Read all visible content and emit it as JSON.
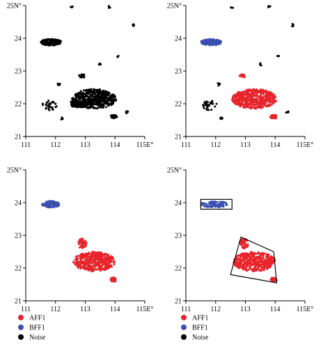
{
  "colors": {
    "AFF1": "#e8242b",
    "BFF1": "#3b4fb0",
    "Noise": "#000000",
    "axis": "#000000",
    "polygon": "#000000"
  },
  "chart_data": [
    {
      "type": "scatter",
      "panel": "top-left",
      "xlim": [
        111,
        115
      ],
      "ylim": [
        21,
        25
      ],
      "x_ticks": [
        "111",
        "112",
        "113",
        "114",
        "115E°"
      ],
      "y_ticks": [
        "21",
        "22",
        "23",
        "24",
        "25N°"
      ],
      "grid": false,
      "series": [
        {
          "name": "Noise",
          "color": "#000000",
          "regions": [
            {
              "cx": 111.85,
              "cy": 23.88,
              "rx": 0.35,
              "ry": 0.1,
              "n": 160
            },
            {
              "cx": 113.3,
              "cy": 22.15,
              "rx": 0.75,
              "ry": 0.3,
              "n": 500
            },
            {
              "cx": 112.8,
              "cy": 22.0,
              "rx": 0.35,
              "ry": 0.12,
              "n": 80
            },
            {
              "cx": 113.95,
              "cy": 21.6,
              "rx": 0.12,
              "ry": 0.06,
              "n": 40
            },
            {
              "cx": 112.9,
              "cy": 22.85,
              "rx": 0.12,
              "ry": 0.05,
              "n": 20
            },
            {
              "cx": 111.8,
              "cy": 21.95,
              "rx": 0.25,
              "ry": 0.15,
              "n": 30
            },
            {
              "cx": 112.1,
              "cy": 22.6,
              "rx": 0.05,
              "ry": 0.05,
              "n": 6
            },
            {
              "cx": 114.4,
              "cy": 21.75,
              "rx": 0.05,
              "ry": 0.04,
              "n": 5
            },
            {
              "cx": 112.2,
              "cy": 21.55,
              "rx": 0.05,
              "ry": 0.04,
              "n": 5
            },
            {
              "cx": 113.5,
              "cy": 23.2,
              "rx": 0.05,
              "ry": 0.04,
              "n": 4
            },
            {
              "cx": 114.6,
              "cy": 24.4,
              "rx": 0.05,
              "ry": 0.04,
              "n": 4
            },
            {
              "cx": 113.8,
              "cy": 24.95,
              "rx": 0.05,
              "ry": 0.04,
              "n": 4
            },
            {
              "cx": 114.1,
              "cy": 23.45,
              "rx": 0.04,
              "ry": 0.03,
              "n": 3
            },
            {
              "cx": 112.55,
              "cy": 24.95,
              "rx": 0.04,
              "ry": 0.03,
              "n": 3
            }
          ]
        }
      ]
    },
    {
      "type": "scatter",
      "panel": "top-right",
      "xlim": [
        111,
        115
      ],
      "ylim": [
        21,
        25
      ],
      "x_ticks": [
        "111",
        "112",
        "113",
        "114",
        "115E°"
      ],
      "y_ticks": [
        "21",
        "22",
        "23",
        "24",
        "25N°"
      ],
      "grid": false,
      "series": [
        {
          "name": "BFF1",
          "color": "#3b4fb0",
          "regions": [
            {
              "cx": 111.85,
              "cy": 23.88,
              "rx": 0.35,
              "ry": 0.1,
              "n": 160
            }
          ]
        },
        {
          "name": "AFF1",
          "color": "#e8242b",
          "regions": [
            {
              "cx": 113.3,
              "cy": 22.15,
              "rx": 0.75,
              "ry": 0.3,
              "n": 500
            },
            {
              "cx": 112.9,
              "cy": 22.85,
              "rx": 0.12,
              "ry": 0.05,
              "n": 20
            },
            {
              "cx": 113.95,
              "cy": 21.6,
              "rx": 0.12,
              "ry": 0.06,
              "n": 40
            }
          ]
        },
        {
          "name": "Noise",
          "color": "#000000",
          "regions": [
            {
              "cx": 111.8,
              "cy": 21.95,
              "rx": 0.25,
              "ry": 0.15,
              "n": 30
            },
            {
              "cx": 112.1,
              "cy": 22.6,
              "rx": 0.05,
              "ry": 0.05,
              "n": 6
            },
            {
              "cx": 114.4,
              "cy": 21.75,
              "rx": 0.05,
              "ry": 0.04,
              "n": 5
            },
            {
              "cx": 112.2,
              "cy": 21.55,
              "rx": 0.05,
              "ry": 0.04,
              "n": 5
            },
            {
              "cx": 113.5,
              "cy": 23.2,
              "rx": 0.05,
              "ry": 0.04,
              "n": 4
            },
            {
              "cx": 114.6,
              "cy": 24.4,
              "rx": 0.05,
              "ry": 0.04,
              "n": 4
            },
            {
              "cx": 113.8,
              "cy": 24.95,
              "rx": 0.05,
              "ry": 0.04,
              "n": 4
            },
            {
              "cx": 114.1,
              "cy": 23.45,
              "rx": 0.04,
              "ry": 0.03,
              "n": 3
            },
            {
              "cx": 112.55,
              "cy": 24.95,
              "rx": 0.04,
              "ry": 0.03,
              "n": 3
            }
          ]
        }
      ]
    },
    {
      "type": "scatter",
      "panel": "bottom-left",
      "xlim": [
        111,
        115
      ],
      "ylim": [
        21,
        25
      ],
      "x_ticks": [
        "111",
        "112",
        "113",
        "114",
        "115E°"
      ],
      "y_ticks": [
        "21",
        "22",
        "23",
        "24",
        "25N°"
      ],
      "grid": false,
      "series": [
        {
          "name": "BFF1",
          "color": "#3b4fb0",
          "regions": [
            {
              "cx": 111.85,
              "cy": 23.95,
              "rx": 0.3,
              "ry": 0.1,
              "n": 110
            }
          ]
        },
        {
          "name": "AFF1",
          "color": "#e8242b",
          "regions": [
            {
              "cx": 113.3,
              "cy": 22.2,
              "rx": 0.7,
              "ry": 0.3,
              "n": 450
            },
            {
              "cx": 112.9,
              "cy": 22.75,
              "rx": 0.15,
              "ry": 0.15,
              "n": 50
            },
            {
              "cx": 113.95,
              "cy": 21.65,
              "rx": 0.1,
              "ry": 0.07,
              "n": 35
            }
          ]
        }
      ]
    },
    {
      "type": "scatter",
      "panel": "bottom-right",
      "xlim": [
        111,
        115
      ],
      "ylim": [
        21,
        25
      ],
      "x_ticks": [
        "111",
        "112",
        "113",
        "114",
        "115E°"
      ],
      "y_ticks": [
        "21",
        "22",
        "23",
        "24",
        "25N°"
      ],
      "grid": false,
      "series": [
        {
          "name": "BFF1",
          "color": "#3b4fb0",
          "regions": [
            {
              "cx": 111.95,
              "cy": 23.95,
              "rx": 0.45,
              "ry": 0.1,
              "n": 110
            }
          ]
        },
        {
          "name": "AFF1",
          "color": "#e8242b",
          "regions": [
            {
              "cx": 113.3,
              "cy": 22.2,
              "rx": 0.7,
              "ry": 0.3,
              "n": 450
            },
            {
              "cx": 112.95,
              "cy": 22.75,
              "rx": 0.15,
              "ry": 0.15,
              "n": 50
            },
            {
              "cx": 113.95,
              "cy": 21.65,
              "rx": 0.1,
              "ry": 0.07,
              "n": 35
            }
          ]
        }
      ],
      "rectangle": {
        "x0": 111.5,
        "x1": 112.55,
        "y0": 23.8,
        "y1": 24.1
      },
      "polygon": [
        [
          112.85,
          22.95
        ],
        [
          113.95,
          22.5
        ],
        [
          114.05,
          21.55
        ],
        [
          112.5,
          21.8
        ]
      ]
    }
  ],
  "legends": [
    {
      "panel": "left",
      "items": [
        {
          "label": "AFF1",
          "color": "#e8242b"
        },
        {
          "label": "BFF1",
          "color": "#3b4fb0"
        },
        {
          "label": "Noise",
          "color": "#000000"
        }
      ]
    },
    {
      "panel": "right",
      "items": [
        {
          "label": "AFF1",
          "color": "#e8242b"
        },
        {
          "label": "BFF1",
          "color": "#3b4fb0"
        },
        {
          "label": "Noise",
          "color": "#000000"
        }
      ]
    }
  ]
}
